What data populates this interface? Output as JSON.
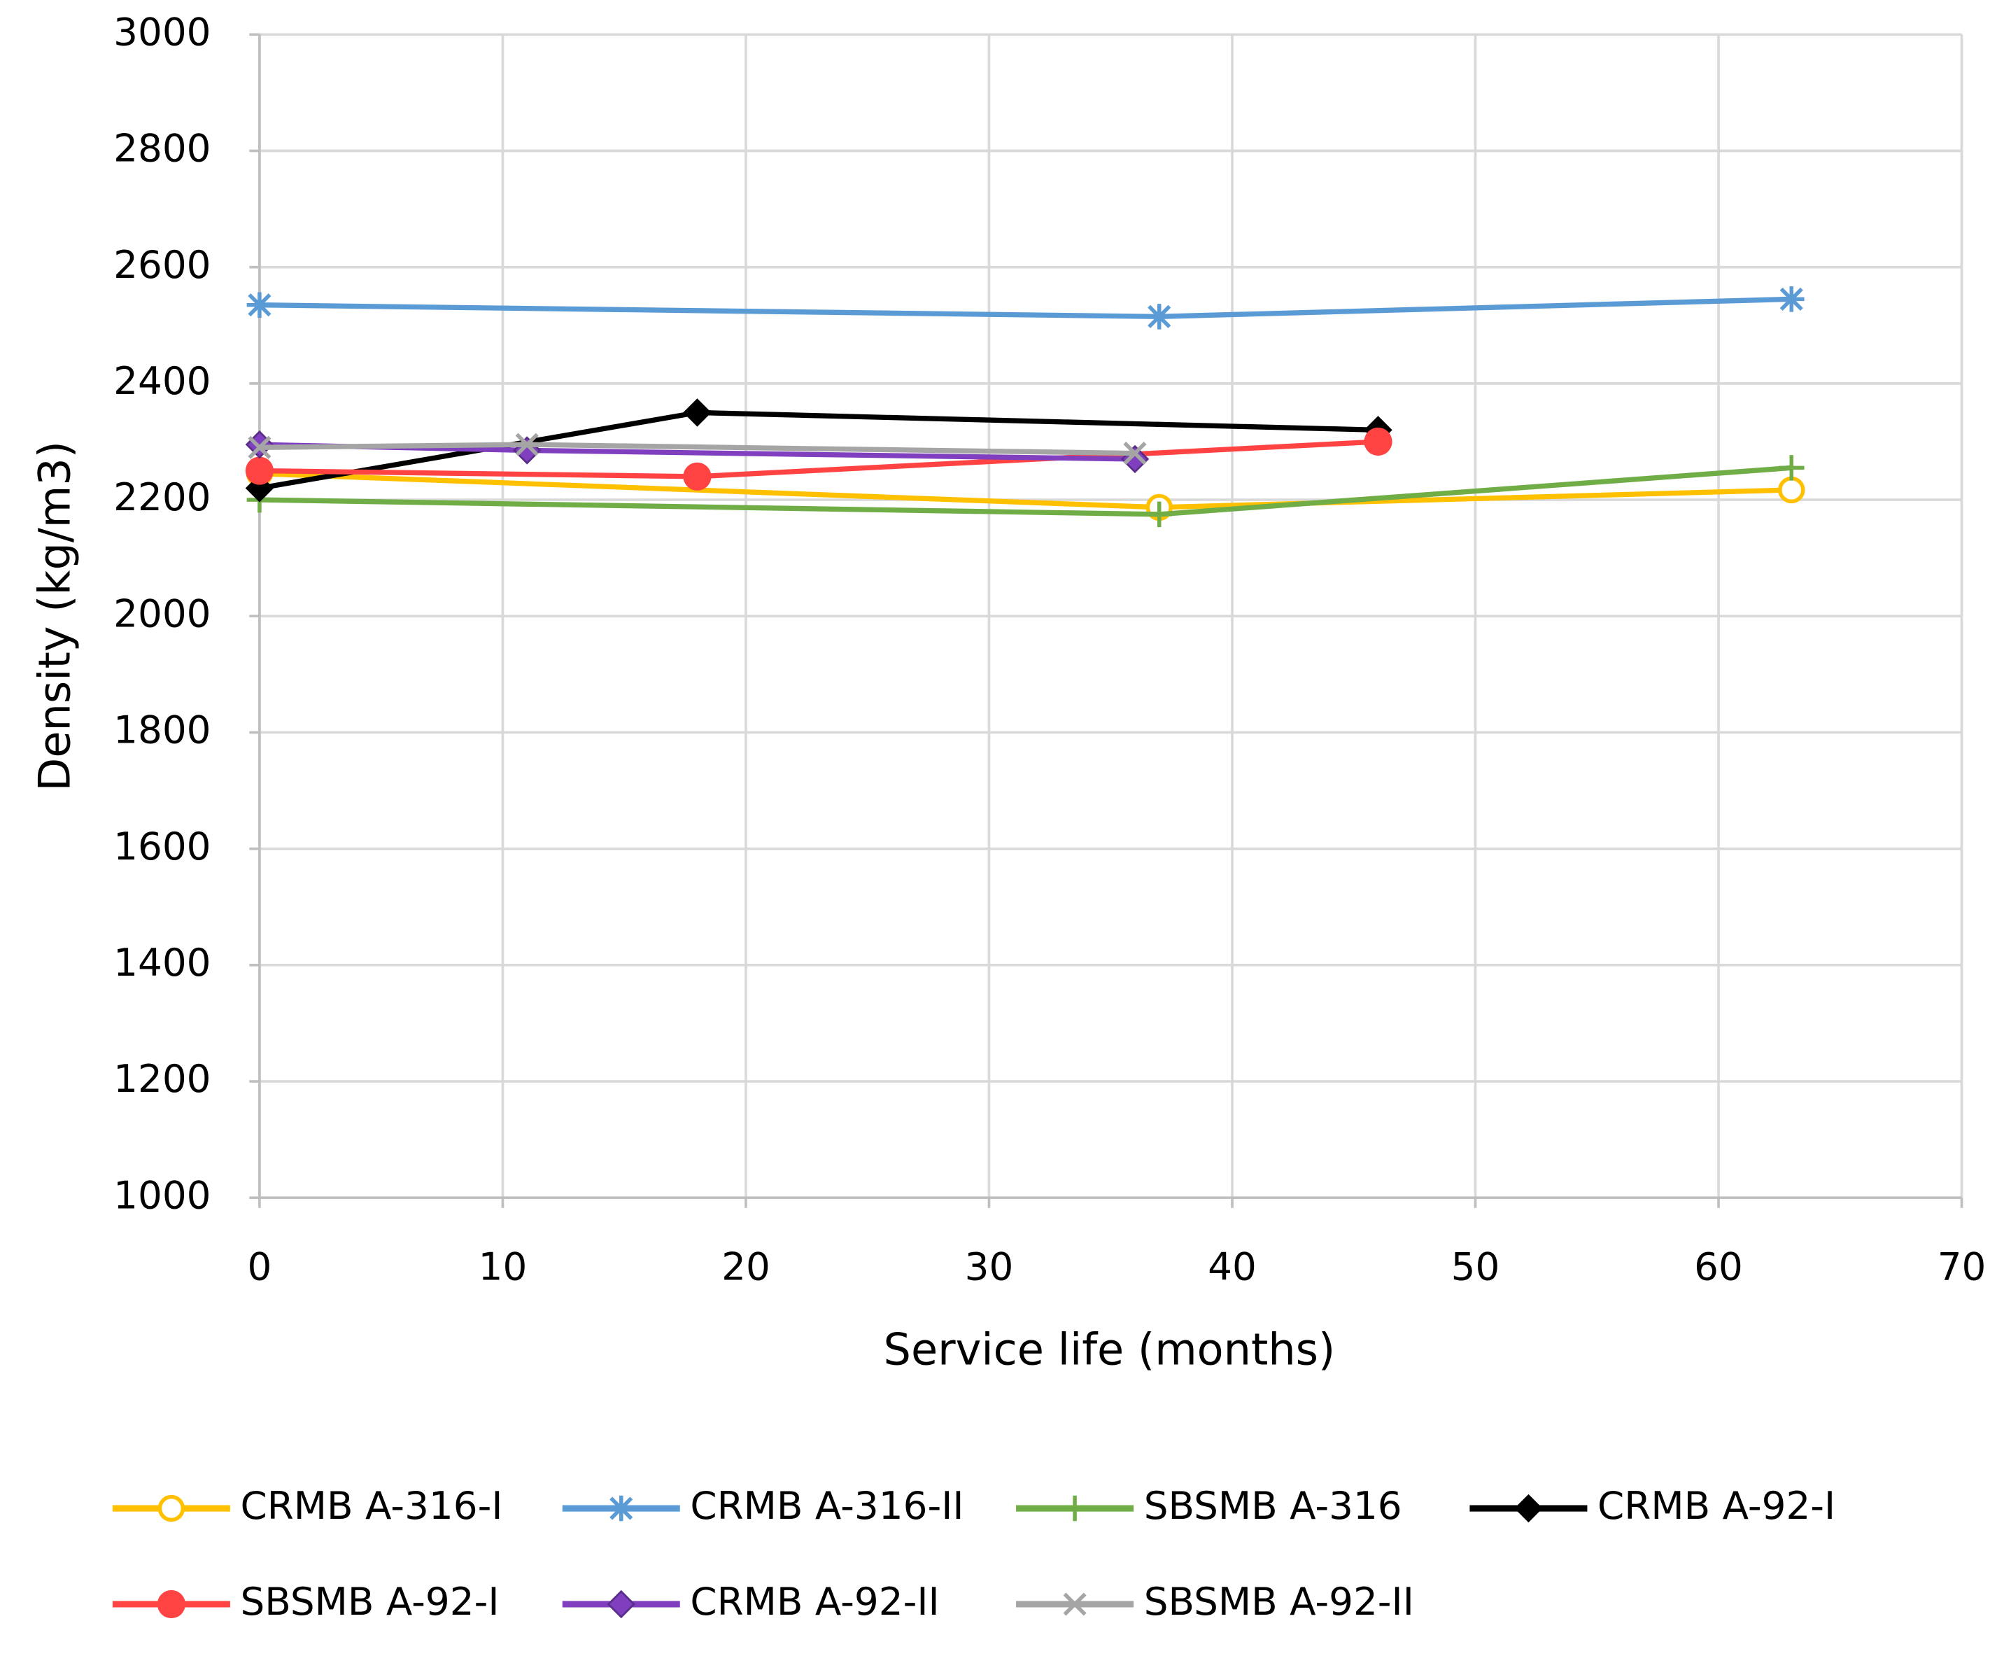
{
  "chart_data": {
    "type": "line",
    "x_label": "Service life (months)",
    "y_label": "Density (kg/m3)",
    "xlim": [
      0,
      70
    ],
    "xticks": [
      0,
      10,
      20,
      30,
      40,
      50,
      60,
      70
    ],
    "ylim": [
      1000,
      3000
    ],
    "yticks": [
      1000,
      1200,
      1400,
      1600,
      1800,
      2000,
      2200,
      2400,
      2600,
      2800,
      3000
    ],
    "grid": true,
    "legend": "bottom",
    "series": [
      {
        "name": "CRMB A-316-I",
        "color": "#ffc000",
        "marker": "open-circle",
        "x": [
          0,
          37,
          63
        ],
        "values": [
          2245,
          2187,
          2217
        ]
      },
      {
        "name": "CRMB A-316-II",
        "color": "#5b9bd5",
        "marker": "asterisk",
        "x": [
          0,
          37,
          63
        ],
        "values": [
          2535,
          2515,
          2545
        ]
      },
      {
        "name": "SBSMB A-316",
        "color": "#70ad47",
        "marker": "plus",
        "x": [
          0,
          37,
          63
        ],
        "values": [
          2200,
          2175,
          2255
        ]
      },
      {
        "name": "CRMB A-92-I",
        "color": "#000000",
        "marker": "diamond",
        "x": [
          0,
          18,
          46
        ],
        "values": [
          2220,
          2350,
          2320
        ]
      },
      {
        "name": "SBSMB A-92-I",
        "color": "#ff4343",
        "marker": "circle",
        "x": [
          0,
          18,
          46
        ],
        "values": [
          2250,
          2240,
          2300
        ]
      },
      {
        "name": "CRMB A-92-II",
        "color": "#7f3fbf",
        "marker": "diamond",
        "x": [
          0,
          11,
          36
        ],
        "values": [
          2295,
          2285,
          2270
        ]
      },
      {
        "name": "SBSMB A-92-II",
        "color": "#a5a5a5",
        "marker": "cross",
        "x": [
          0,
          11,
          36
        ],
        "values": [
          2290,
          2295,
          2280
        ]
      }
    ]
  }
}
